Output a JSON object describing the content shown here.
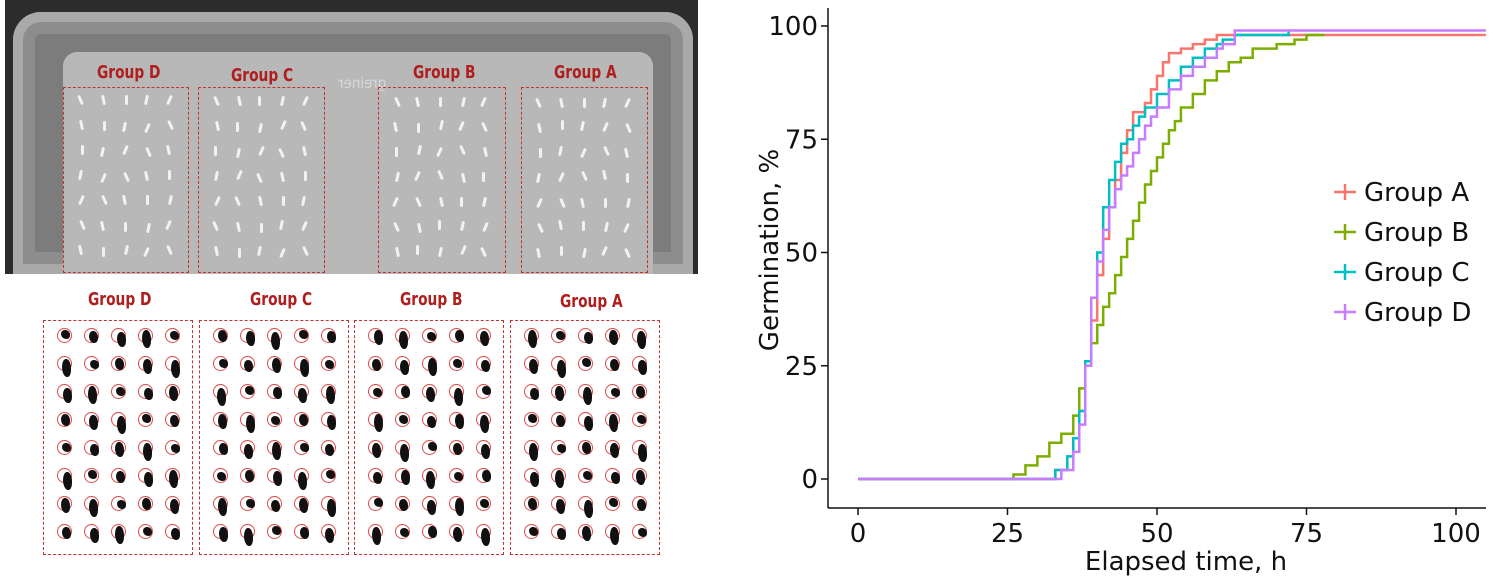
{
  "photo_top": {
    "brand_text": "greiner",
    "groups": [
      {
        "label": "Group D"
      },
      {
        "label": "Group C"
      },
      {
        "label": "Group B"
      },
      {
        "label": "Group A"
      }
    ]
  },
  "photo_bottom": {
    "groups": [
      {
        "label": "Group D"
      },
      {
        "label": "Group C"
      },
      {
        "label": "Group B"
      },
      {
        "label": "Group A"
      }
    ]
  },
  "chart_data": {
    "type": "line",
    "xlabel": "Elapsed time, h",
    "ylabel": "Germination, %",
    "xlim": [
      0,
      105
    ],
    "ylim": [
      0,
      100
    ],
    "x_ticks": [
      0,
      25,
      50,
      75,
      100
    ],
    "y_ticks": [
      0,
      25,
      50,
      75,
      100
    ],
    "grid": false,
    "legend_position": "right",
    "series": [
      {
        "name": "Group A",
        "color": "#F8766D",
        "points": [
          [
            0,
            0
          ],
          [
            31,
            0
          ],
          [
            33,
            2
          ],
          [
            35,
            5
          ],
          [
            36,
            9
          ],
          [
            37,
            15
          ],
          [
            38,
            25
          ],
          [
            39,
            35
          ],
          [
            40,
            45
          ],
          [
            41,
            53
          ],
          [
            42,
            60
          ],
          [
            43,
            66
          ],
          [
            44,
            72
          ],
          [
            45,
            77
          ],
          [
            46,
            81
          ],
          [
            48,
            83
          ],
          [
            49,
            86
          ],
          [
            50,
            89
          ],
          [
            51,
            92
          ],
          [
            52,
            94
          ],
          [
            54,
            95
          ],
          [
            56,
            96
          ],
          [
            58,
            97
          ],
          [
            60,
            98
          ],
          [
            62,
            98
          ],
          [
            105,
            98
          ]
        ]
      },
      {
        "name": "Group B",
        "color": "#7CAE00",
        "points": [
          [
            0,
            0
          ],
          [
            26,
            0
          ],
          [
            26,
            1
          ],
          [
            28,
            3
          ],
          [
            30,
            5
          ],
          [
            32,
            8
          ],
          [
            34,
            10
          ],
          [
            36,
            14
          ],
          [
            37,
            20
          ],
          [
            38,
            25
          ],
          [
            39,
            30
          ],
          [
            40,
            34
          ],
          [
            41,
            38
          ],
          [
            42,
            41
          ],
          [
            43,
            45
          ],
          [
            44,
            49
          ],
          [
            45,
            53
          ],
          [
            46,
            57
          ],
          [
            47,
            61
          ],
          [
            48,
            65
          ],
          [
            49,
            68
          ],
          [
            50,
            71
          ],
          [
            51,
            74
          ],
          [
            52,
            77
          ],
          [
            53,
            79
          ],
          [
            54,
            82
          ],
          [
            56,
            85
          ],
          [
            58,
            88
          ],
          [
            60,
            90
          ],
          [
            62,
            92
          ],
          [
            64,
            93
          ],
          [
            66,
            95
          ],
          [
            70,
            96
          ],
          [
            73,
            97
          ],
          [
            75,
            98
          ],
          [
            78,
            98
          ]
        ]
      },
      {
        "name": "Group C",
        "color": "#00BFC4",
        "points": [
          [
            0,
            0
          ],
          [
            31,
            0
          ],
          [
            33,
            2
          ],
          [
            35,
            5
          ],
          [
            36,
            9
          ],
          [
            37,
            15
          ],
          [
            38,
            26
          ],
          [
            39,
            40
          ],
          [
            40,
            50
          ],
          [
            41,
            60
          ],
          [
            42,
            66
          ],
          [
            43,
            70
          ],
          [
            44,
            74
          ],
          [
            45,
            75
          ],
          [
            46,
            78
          ],
          [
            47,
            80
          ],
          [
            48,
            82
          ],
          [
            50,
            85
          ],
          [
            52,
            88
          ],
          [
            54,
            91
          ],
          [
            56,
            93
          ],
          [
            58,
            95
          ],
          [
            60,
            96
          ],
          [
            61,
            97
          ],
          [
            63,
            98
          ],
          [
            65,
            98
          ],
          [
            72,
            99
          ]
        ]
      },
      {
        "name": "Group D",
        "color": "#C77CFF",
        "points": [
          [
            0,
            0
          ],
          [
            32,
            0
          ],
          [
            34,
            2
          ],
          [
            36,
            6
          ],
          [
            37,
            12
          ],
          [
            38,
            25
          ],
          [
            39,
            40
          ],
          [
            40,
            48
          ],
          [
            41,
            55
          ],
          [
            42,
            60
          ],
          [
            43,
            64
          ],
          [
            44,
            67
          ],
          [
            45,
            69
          ],
          [
            46,
            72
          ],
          [
            47,
            75
          ],
          [
            48,
            78
          ],
          [
            49,
            80
          ],
          [
            50,
            82
          ],
          [
            52,
            86
          ],
          [
            54,
            89
          ],
          [
            56,
            91
          ],
          [
            58,
            93
          ],
          [
            60,
            95
          ],
          [
            61,
            96
          ],
          [
            63,
            99
          ],
          [
            105,
            99
          ]
        ]
      }
    ]
  }
}
